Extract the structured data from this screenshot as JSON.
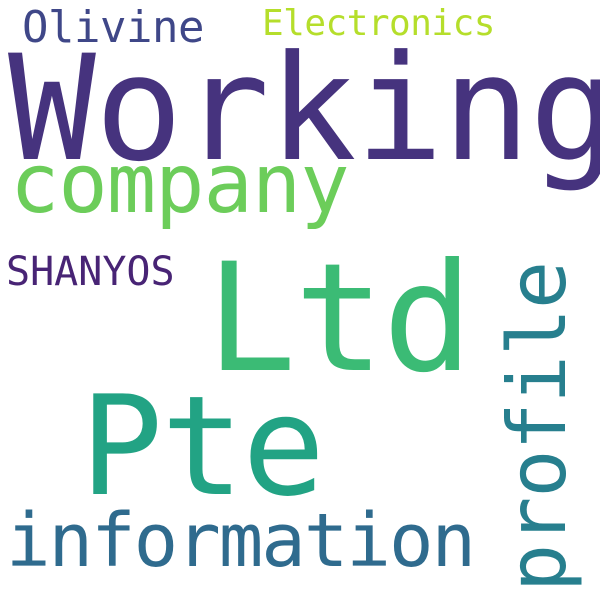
{
  "words": {
    "olivine": {
      "text": "Olivine",
      "color": "#3f4788"
    },
    "electronics": {
      "text": "Electronics",
      "color": "#b5de2b"
    },
    "working": {
      "text": "Working",
      "color": "#46337e"
    },
    "company": {
      "text": "company",
      "color": "#6ccd5a"
    },
    "shanyos": {
      "text": "SHANYOS",
      "color": "#482475"
    },
    "ltd": {
      "text": "Ltd",
      "color": "#3bbb75"
    },
    "pte": {
      "text": "Pte",
      "color": "#22a384"
    },
    "information": {
      "text": "information",
      "color": "#2f6b8e"
    },
    "profile": {
      "text": "profile",
      "color": "#277f8e",
      "orientation": "vertical"
    }
  },
  "background_color": "#ffffff"
}
